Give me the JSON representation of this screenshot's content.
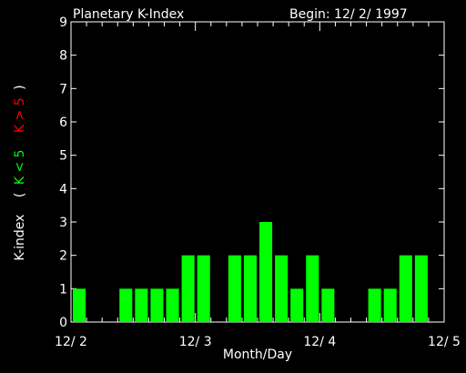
{
  "header": {
    "title": "Planetary K-Index",
    "begin": "Begin: 12/ 2/ 1997"
  },
  "colors": {
    "background": "#000000",
    "axes": "#ffffff",
    "text": "#ffffff",
    "bar": "#00ff00",
    "legend_low": "#00ff00",
    "legend_high": "#ff0000"
  },
  "chart_data": {
    "type": "bar",
    "title": "Planetary K-Index",
    "xlabel": "Month/Day",
    "ylabel_parts": [
      {
        "text": "K-index",
        "color": "#ffffff"
      },
      {
        "text": "(",
        "color": "#ffffff"
      },
      {
        "text": "K < 5",
        "color": "#00ff00"
      },
      {
        "text": "K > 5",
        "color": "#ff0000"
      },
      {
        "text": ")",
        "color": "#ffffff"
      }
    ],
    "ylim": [
      0,
      9
    ],
    "yticks": [
      0,
      1,
      2,
      3,
      4,
      5,
      6,
      7,
      8,
      9
    ],
    "x_domain_days": [
      0,
      3
    ],
    "x_ticks": [
      {
        "day": 0,
        "label": "12/ 2"
      },
      {
        "day": 1,
        "label": "12/ 3"
      },
      {
        "day": 2,
        "label": "12/ 4"
      },
      {
        "day": 3,
        "label": "12/ 5"
      }
    ],
    "interval_hours": 3,
    "values": [
      1,
      null,
      null,
      1,
      1,
      1,
      1,
      2,
      2,
      null,
      2,
      2,
      3,
      2,
      1,
      2,
      1,
      null,
      null,
      1,
      1,
      2,
      2,
      null
    ],
    "grid": false,
    "legend": "none"
  }
}
